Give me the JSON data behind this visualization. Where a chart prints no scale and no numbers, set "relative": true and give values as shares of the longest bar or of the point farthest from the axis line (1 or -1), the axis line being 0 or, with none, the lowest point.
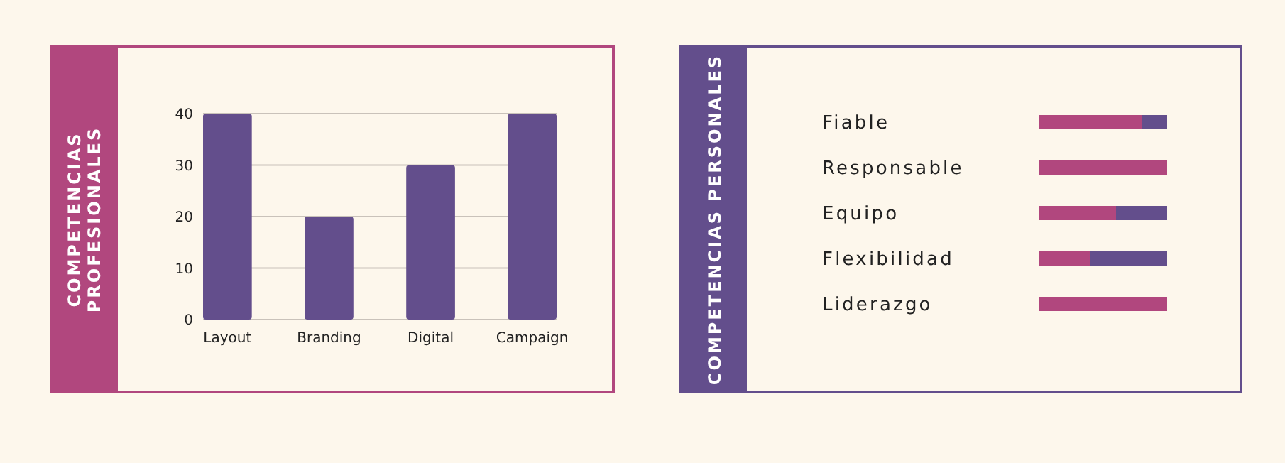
{
  "chart_data": [
    {
      "type": "bar",
      "title": "COMPETENCIAS PROFESIONALES",
      "categories": [
        "Layout",
        "Branding",
        "Digital",
        "Campaign"
      ],
      "values": [
        40,
        20,
        30,
        40
      ],
      "color": "#634e8c",
      "ylim": [
        0,
        40
      ],
      "yticks": [
        0,
        10,
        20,
        30,
        40
      ],
      "grid": "y"
    },
    {
      "type": "bar",
      "orientation": "horizontal",
      "stacked": true,
      "relative": true,
      "title": "COMPETENCIAS PERSONALES",
      "categories": [
        "Fiable",
        "Responsable",
        "Equipo",
        "Flexibilidad",
        "Liderazgo"
      ],
      "series": [
        {
          "color": "#b1477e",
          "values": [
            0.8,
            1,
            0.6,
            0.4,
            1
          ]
        },
        {
          "color": "#634e8c",
          "values": [
            0.2,
            0,
            0.4,
            0.6,
            0
          ]
        }
      ]
    }
  ]
}
